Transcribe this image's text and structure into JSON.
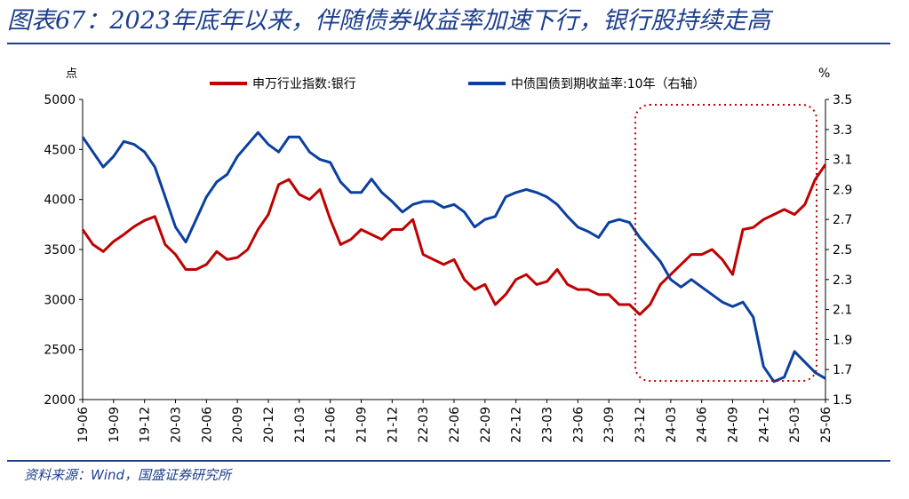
{
  "header": {
    "title": "图表67：2023年底年以来，伴随债券收益率加速下行，银行股持续走高"
  },
  "footer": {
    "source": "资料来源：Wind，国盛证券研究所"
  },
  "chart_data": {
    "type": "line",
    "left_unit": "点",
    "right_unit": "%",
    "x_ticks": [
      "19-06",
      "19-09",
      "19-12",
      "20-03",
      "20-06",
      "20-09",
      "20-12",
      "21-03",
      "21-06",
      "21-09",
      "21-12",
      "22-03",
      "22-06",
      "22-09",
      "22-12",
      "23-03",
      "23-06",
      "23-09",
      "23-12",
      "24-03",
      "24-06",
      "24-09",
      "24-12",
      "25-03",
      "25-06"
    ],
    "left_axis": {
      "min": 2000,
      "max": 5000,
      "ticks": [
        2000,
        2500,
        3000,
        3500,
        4000,
        4500,
        5000
      ]
    },
    "right_axis": {
      "min": 1.5,
      "max": 3.5,
      "ticks": [
        "1.5",
        "1.7",
        "1.9",
        "2.1",
        "2.3",
        "2.5",
        "2.7",
        "2.9",
        "3.1",
        "3.3",
        "3.5"
      ]
    },
    "series": [
      {
        "name": "申万行业指数:银行",
        "axis": "left",
        "color": "#c00000",
        "points": [
          [
            "19-06",
            3700
          ],
          [
            "19-07",
            3550
          ],
          [
            "19-08",
            3480
          ],
          [
            "19-09",
            3580
          ],
          [
            "19-10",
            3650
          ],
          [
            "19-11",
            3730
          ],
          [
            "19-12",
            3790
          ],
          [
            "20-01",
            3830
          ],
          [
            "20-02",
            3550
          ],
          [
            "20-03",
            3450
          ],
          [
            "20-04",
            3300
          ],
          [
            "20-05",
            3300
          ],
          [
            "20-06",
            3350
          ],
          [
            "20-07",
            3480
          ],
          [
            "20-08",
            3400
          ],
          [
            "20-09",
            3420
          ],
          [
            "20-10",
            3500
          ],
          [
            "20-11",
            3700
          ],
          [
            "20-12",
            3850
          ],
          [
            "21-01",
            4150
          ],
          [
            "21-02",
            4200
          ],
          [
            "21-03",
            4050
          ],
          [
            "21-04",
            4000
          ],
          [
            "21-05",
            4100
          ],
          [
            "21-06",
            3800
          ],
          [
            "21-07",
            3550
          ],
          [
            "21-08",
            3600
          ],
          [
            "21-09",
            3700
          ],
          [
            "21-10",
            3650
          ],
          [
            "21-11",
            3600
          ],
          [
            "21-12",
            3700
          ],
          [
            "22-01",
            3700
          ],
          [
            "22-02",
            3800
          ],
          [
            "22-03",
            3450
          ],
          [
            "22-04",
            3400
          ],
          [
            "22-05",
            3350
          ],
          [
            "22-06",
            3400
          ],
          [
            "22-07",
            3200
          ],
          [
            "22-08",
            3100
          ],
          [
            "22-09",
            3150
          ],
          [
            "22-10",
            2950
          ],
          [
            "22-11",
            3050
          ],
          [
            "22-12",
            3200
          ],
          [
            "23-01",
            3250
          ],
          [
            "23-02",
            3150
          ],
          [
            "23-03",
            3180
          ],
          [
            "23-04",
            3300
          ],
          [
            "23-05",
            3150
          ],
          [
            "23-06",
            3100
          ],
          [
            "23-07",
            3100
          ],
          [
            "23-08",
            3050
          ],
          [
            "23-09",
            3050
          ],
          [
            "23-10",
            2950
          ],
          [
            "23-11",
            2950
          ],
          [
            "23-12",
            2850
          ],
          [
            "24-01",
            2950
          ],
          [
            "24-02",
            3150
          ],
          [
            "24-03",
            3250
          ],
          [
            "24-04",
            3350
          ],
          [
            "24-05",
            3450
          ],
          [
            "24-06",
            3450
          ],
          [
            "24-07",
            3500
          ],
          [
            "24-08",
            3400
          ],
          [
            "24-09",
            3250
          ],
          [
            "24-10",
            3700
          ],
          [
            "24-11",
            3720
          ],
          [
            "24-12",
            3800
          ],
          [
            "25-01",
            3850
          ],
          [
            "25-02",
            3900
          ],
          [
            "25-03",
            3850
          ],
          [
            "25-04",
            3950
          ],
          [
            "25-05",
            4200
          ],
          [
            "25-06",
            4350
          ]
        ]
      },
      {
        "name": "中债国债到期收益率:10年（右轴）",
        "axis": "right",
        "color": "#0b3fa0",
        "points": [
          [
            "19-06",
            3.25
          ],
          [
            "19-07",
            3.15
          ],
          [
            "19-08",
            3.05
          ],
          [
            "19-09",
            3.12
          ],
          [
            "19-10",
            3.22
          ],
          [
            "19-11",
            3.2
          ],
          [
            "19-12",
            3.15
          ],
          [
            "20-01",
            3.05
          ],
          [
            "20-02",
            2.85
          ],
          [
            "20-03",
            2.65
          ],
          [
            "20-04",
            2.55
          ],
          [
            "20-05",
            2.7
          ],
          [
            "20-06",
            2.85
          ],
          [
            "20-07",
            2.95
          ],
          [
            "20-08",
            3.0
          ],
          [
            "20-09",
            3.12
          ],
          [
            "20-10",
            3.2
          ],
          [
            "20-11",
            3.28
          ],
          [
            "20-12",
            3.2
          ],
          [
            "21-01",
            3.15
          ],
          [
            "21-02",
            3.25
          ],
          [
            "21-03",
            3.25
          ],
          [
            "21-04",
            3.15
          ],
          [
            "21-05",
            3.1
          ],
          [
            "21-06",
            3.08
          ],
          [
            "21-07",
            2.95
          ],
          [
            "21-08",
            2.88
          ],
          [
            "21-09",
            2.88
          ],
          [
            "21-10",
            2.97
          ],
          [
            "21-11",
            2.88
          ],
          [
            "21-12",
            2.82
          ],
          [
            "22-01",
            2.75
          ],
          [
            "22-02",
            2.8
          ],
          [
            "22-03",
            2.82
          ],
          [
            "22-04",
            2.82
          ],
          [
            "22-05",
            2.78
          ],
          [
            "22-06",
            2.8
          ],
          [
            "22-07",
            2.75
          ],
          [
            "22-08",
            2.65
          ],
          [
            "22-09",
            2.7
          ],
          [
            "22-10",
            2.72
          ],
          [
            "22-11",
            2.85
          ],
          [
            "22-12",
            2.88
          ],
          [
            "23-01",
            2.9
          ],
          [
            "23-02",
            2.88
          ],
          [
            "23-03",
            2.85
          ],
          [
            "23-04",
            2.8
          ],
          [
            "23-05",
            2.72
          ],
          [
            "23-06",
            2.65
          ],
          [
            "23-07",
            2.62
          ],
          [
            "23-08",
            2.58
          ],
          [
            "23-09",
            2.68
          ],
          [
            "23-10",
            2.7
          ],
          [
            "23-11",
            2.68
          ],
          [
            "23-12",
            2.58
          ],
          [
            "24-01",
            2.5
          ],
          [
            "24-02",
            2.42
          ],
          [
            "24-03",
            2.3
          ],
          [
            "24-04",
            2.25
          ],
          [
            "24-05",
            2.3
          ],
          [
            "24-06",
            2.25
          ],
          [
            "24-07",
            2.2
          ],
          [
            "24-08",
            2.15
          ],
          [
            "24-09",
            2.12
          ],
          [
            "24-10",
            2.15
          ],
          [
            "24-11",
            2.05
          ],
          [
            "24-12",
            1.72
          ],
          [
            "25-01",
            1.62
          ],
          [
            "25-02",
            1.65
          ],
          [
            "25-03",
            1.82
          ],
          [
            "25-04",
            1.75
          ],
          [
            "25-05",
            1.68
          ],
          [
            "25-06",
            1.64
          ]
        ]
      }
    ],
    "highlight_box": {
      "from": "23-12",
      "to": "25-06",
      "style": "dotted",
      "color": "#c00000"
    }
  }
}
